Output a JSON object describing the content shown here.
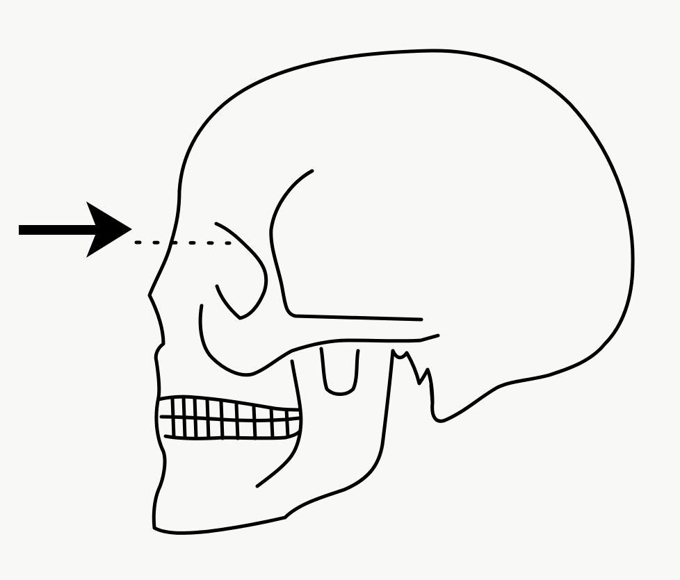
{
  "figure": {
    "subject": "skull-lateral-view",
    "colors": {
      "background": "#f8f8f6",
      "ink": "#000000"
    },
    "marker": {
      "icon": "right-arrow-icon",
      "style": "dotted-line"
    }
  }
}
